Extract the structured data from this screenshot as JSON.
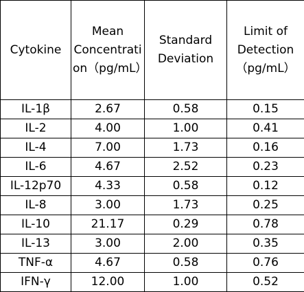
{
  "table": {
    "header": [
      "Cytokine",
      "Mean Concentration（pg/mL）",
      "Standard Deviation",
      "Limit of Detection（pg/mL）"
    ],
    "rows": [
      [
        "IL-1β",
        "2.67",
        "0.58",
        "0.15"
      ],
      [
        "IL-2",
        "4.00",
        "1.00",
        "0.41"
      ],
      [
        "IL-4",
        "7.00",
        "1.73",
        "0.16"
      ],
      [
        "IL-6",
        "4.67",
        "2.52",
        "0.23"
      ],
      [
        "IL-12p70",
        "4.33",
        "0.58",
        "0.12"
      ],
      [
        "IL-8",
        "3.00",
        "1.73",
        "0.25"
      ],
      [
        "IL-10",
        "21.17",
        "0.29",
        "0.78"
      ],
      [
        "IL-13",
        "3.00",
        "2.00",
        "0.35"
      ],
      [
        "TNF-α",
        "4.67",
        "0.58",
        "0.76"
      ],
      [
        "IFN-γ",
        "12.00",
        "1.00",
        "0.52"
      ]
    ]
  }
}
